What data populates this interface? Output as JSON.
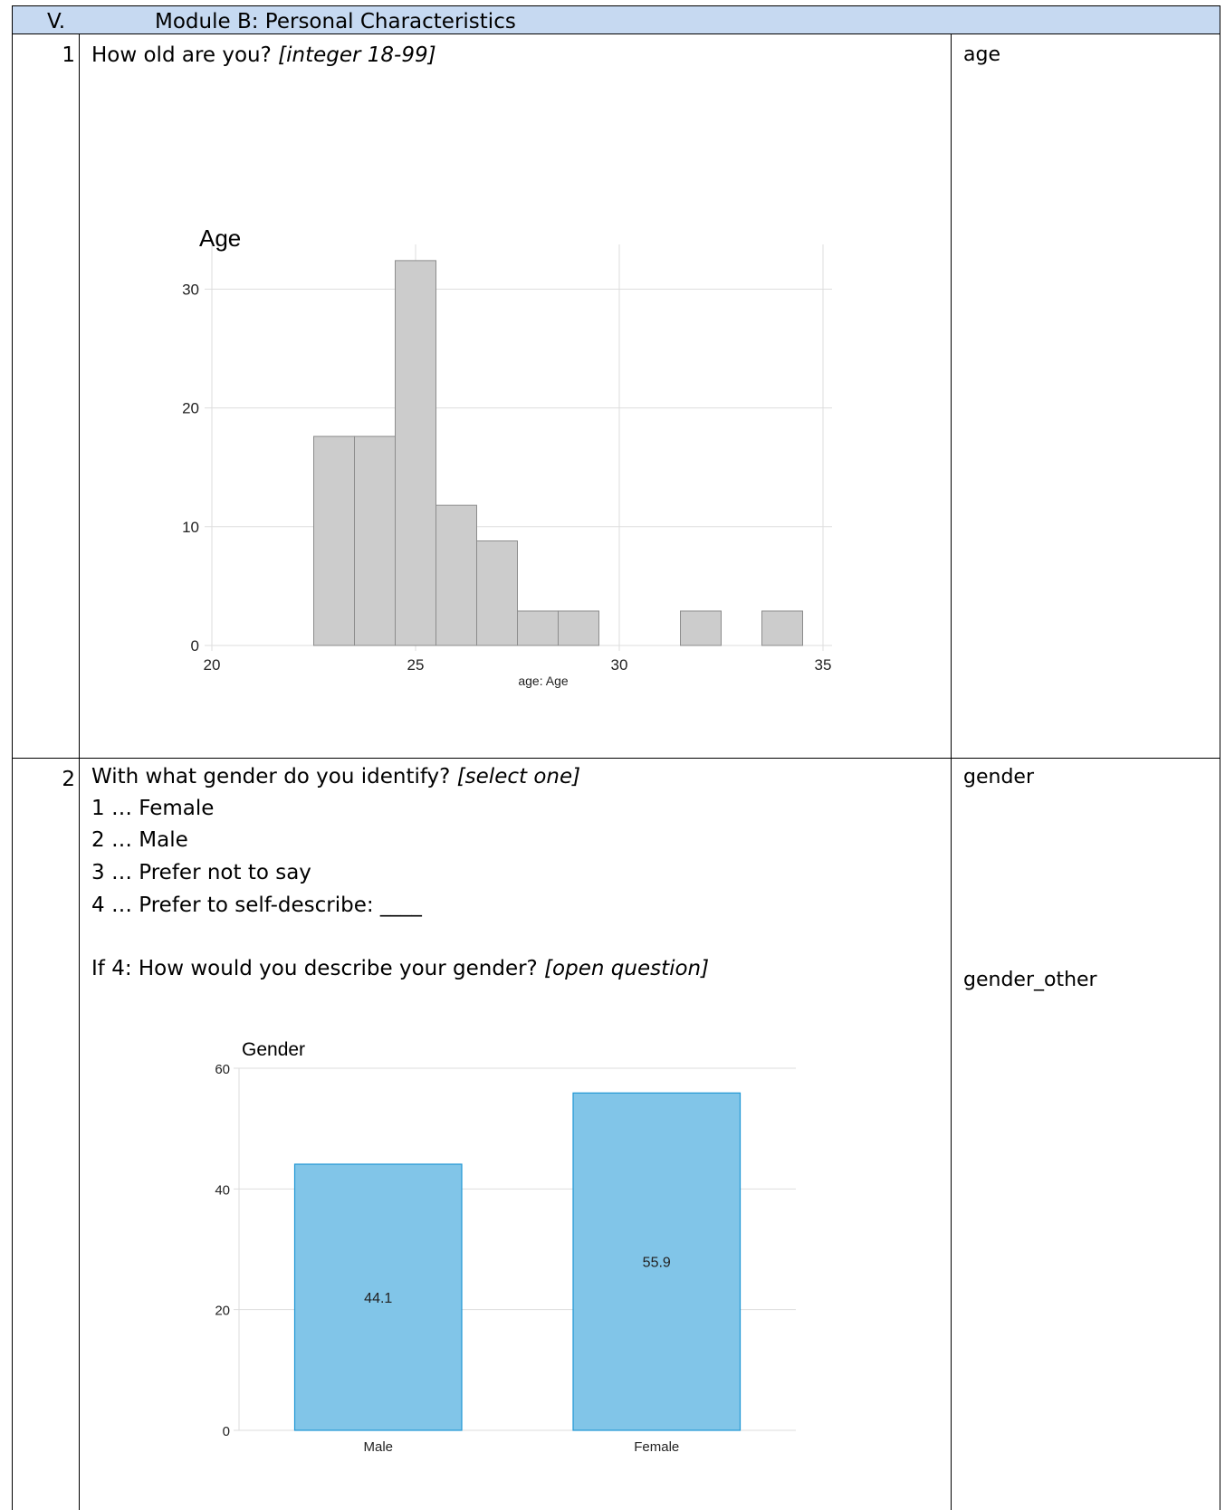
{
  "header": {
    "num": "V.",
    "title": "Module B: Personal Characteristics"
  },
  "rows": [
    {
      "num": "1",
      "question": "How old are you?",
      "hint": "[integer 18-99]",
      "variable": "age"
    },
    {
      "num": "2",
      "question": "With what gender do you identify?",
      "hint": "[select one]",
      "options": [
        "1 … Female",
        "2 … Male",
        "3 … Prefer not to say",
        "4 … Prefer to self-describe: ____"
      ],
      "followup_question": "If 4: How would you describe your gender?",
      "followup_hint": "[open question]",
      "variable": "gender",
      "followup_variable": "gender_other"
    }
  ],
  "chart_data": [
    {
      "type": "bar",
      "title": "Age",
      "xlabel": "age: Age",
      "ylabel": "",
      "bin_starts": [
        22.5,
        23.5,
        24.5,
        25.5,
        26.5,
        27.5,
        28.5,
        29.5,
        30.5,
        31.5,
        32.5,
        33.5
      ],
      "bin_width": 1,
      "values": [
        17.6,
        17.6,
        32.4,
        11.8,
        8.8,
        2.9,
        2.9,
        0,
        0,
        2.9,
        0,
        2.9
      ],
      "xlim": [
        20,
        35
      ],
      "ylim": [
        0,
        33
      ],
      "xticks": [
        "20",
        "25",
        "30",
        "35"
      ],
      "yticks": [
        "0",
        "10",
        "20",
        "30"
      ],
      "grid": true,
      "bar_color": "#cccccc"
    },
    {
      "type": "bar",
      "title": "Gender",
      "categories": [
        "Male",
        "Female"
      ],
      "values": [
        44.1,
        55.9
      ],
      "value_labels": [
        "44.1",
        "55.9"
      ],
      "ylim": [
        0,
        60
      ],
      "yticks": [
        "0",
        "20",
        "40",
        "60"
      ],
      "grid": true,
      "bar_color": "#81c5e8",
      "bar_edge_color": "#1f97d4"
    }
  ]
}
